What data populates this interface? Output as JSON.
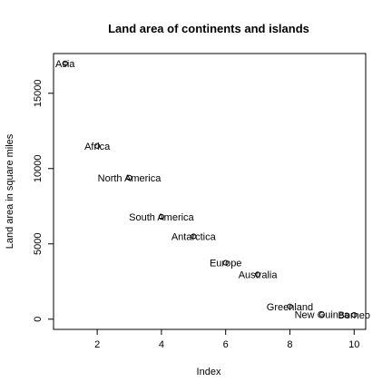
{
  "chart_data": {
    "type": "scatter",
    "title": "Land area of continents and islands",
    "xlabel": "Index",
    "ylabel": "Land area in square miles",
    "xlim": [
      0.64,
      10.36
    ],
    "ylim": [
      -680,
      17640
    ],
    "x_ticks": [
      2,
      4,
      6,
      8,
      10
    ],
    "y_ticks": [
      0,
      5000,
      10000,
      15000
    ],
    "grid": false,
    "legend": "none",
    "points": [
      {
        "x": 1,
        "y": 16988,
        "label": "Asia"
      },
      {
        "x": 2,
        "y": 11506,
        "label": "Africa"
      },
      {
        "x": 3,
        "y": 9390,
        "label": "North America"
      },
      {
        "x": 4,
        "y": 6795,
        "label": "South America"
      },
      {
        "x": 5,
        "y": 5500,
        "label": "Antarctica"
      },
      {
        "x": 6,
        "y": 3745,
        "label": "Europe"
      },
      {
        "x": 7,
        "y": 2968,
        "label": "Australia"
      },
      {
        "x": 8,
        "y": 840,
        "label": "Greenland"
      },
      {
        "x": 9,
        "y": 306,
        "label": "New Guinea"
      },
      {
        "x": 10,
        "y": 280,
        "label": "Borneo"
      }
    ],
    "colors": {
      "points": "#000000",
      "axes": "#000000"
    }
  }
}
